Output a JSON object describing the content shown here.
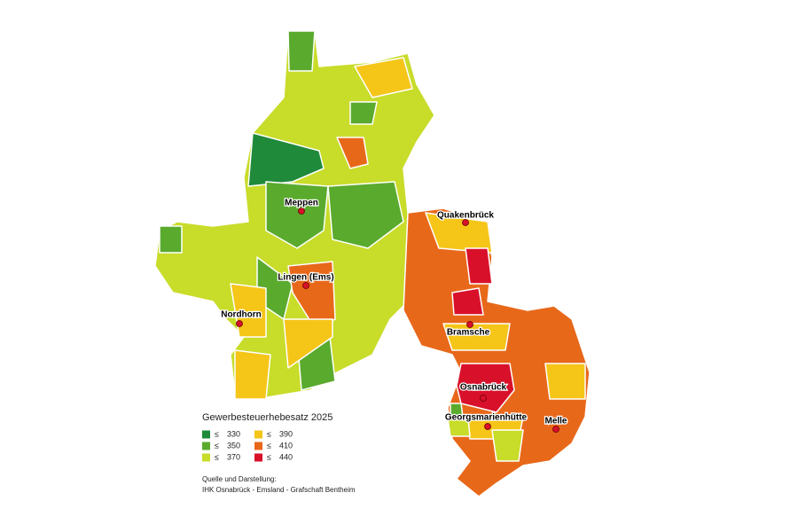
{
  "legend": {
    "title": "Gewerbesteuerhebesatz 2025",
    "items": [
      {
        "symbol": "≤",
        "value": 330,
        "color": "#1f8a3a"
      },
      {
        "symbol": "≤",
        "value": 350,
        "color": "#5aaa2e"
      },
      {
        "symbol": "≤",
        "value": 370,
        "color": "#c8dc2a"
      },
      {
        "symbol": "≤",
        "value": 390,
        "color": "#f5c518"
      },
      {
        "symbol": "≤",
        "value": 410,
        "color": "#e8681a"
      },
      {
        "symbol": "≤",
        "value": 440,
        "color": "#d8102a"
      }
    ]
  },
  "cities": [
    "Meppen",
    "Quakenbrück",
    "Lingen (Ems)",
    "Nordhorn",
    "Bramsche",
    "Osnabrück",
    "Georgsmarienhütte",
    "Melle"
  ],
  "source": [
    "Quelle und Darstellung:",
    "IHK Osnabrück - Emsland - Grafschaft Bentheim"
  ]
}
